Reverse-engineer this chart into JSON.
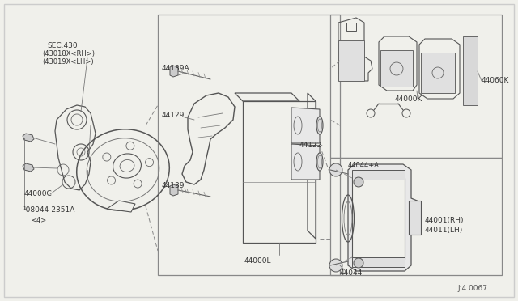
{
  "bg_color": "#f0f0eb",
  "line_color": "#555555",
  "text_color": "#333333",
  "diagram_id": "J:4 0067",
  "labels": {
    "sec_430_line1": "SEC.430",
    "sec_430_line2": "(43018X<RH>)",
    "sec_430_line3": "(43019X<LH>)",
    "l_44000C": "44000C",
    "l_bolt": "¹08044-2351A",
    "l_bolt2": "<4>",
    "l_44139A": "44139A",
    "l_44129": "44129",
    "l_44139": "44139",
    "l_44122": "44122",
    "l_44000L": "44000L",
    "l_44044A": "44044+A",
    "l_44044": "44044",
    "l_44000K": "44000K",
    "l_44060K": "44060K",
    "l_44001": "44001(RH)",
    "l_44011": "44011(LH)"
  }
}
